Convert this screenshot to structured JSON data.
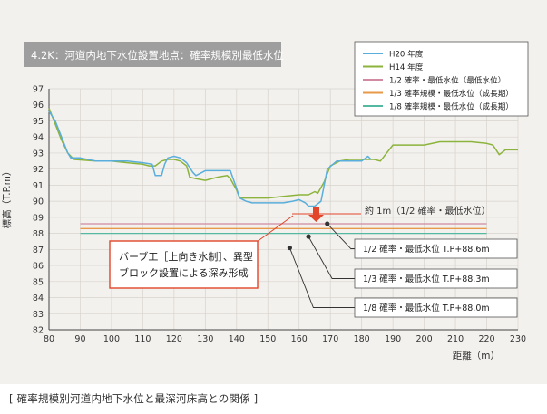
{
  "caption": "[ 確率規模別河道内地下水位と最深河床高との関係 ]",
  "colors": {
    "background": "#f3f1ee",
    "title_bg": "#9e9e9e",
    "h20": "#5aaedc",
    "h14": "#8cb43c",
    "half": "#d08aa2",
    "third": "#e89a4a",
    "eighth": "#55b8a0",
    "arrow": "#e2452a",
    "note_border": "#e2452a"
  },
  "chart_data": {
    "type": "line",
    "title": "4.2K：河道内地下水位設置地点：確率規模別最低水位",
    "xlabel": "距離（m）",
    "ylabel": "標高（T.P.m）",
    "xlim": [
      80,
      230
    ],
    "ylim": [
      82,
      97
    ],
    "xticks": [
      80,
      90,
      100,
      110,
      120,
      130,
      140,
      150,
      160,
      170,
      180,
      190,
      200,
      210,
      220,
      230
    ],
    "yticks": [
      82,
      83,
      84,
      85,
      86,
      87,
      88,
      89,
      90,
      91,
      92,
      93,
      94,
      95,
      96,
      97
    ],
    "legend_position": "top-right",
    "series": [
      {
        "name": "H20 年度",
        "color": "#5aaedc",
        "x": [
          80,
          82,
          84,
          86,
          87,
          90,
          95,
          100,
          105,
          110,
          113,
          114,
          116,
          117,
          118,
          120,
          122,
          124,
          126,
          127,
          129,
          130,
          132,
          135,
          138,
          140,
          141,
          143,
          145,
          150,
          155,
          158,
          160,
          162,
          163,
          165,
          167,
          169,
          172,
          175,
          180,
          182,
          183
        ],
        "y": [
          95.6,
          95.0,
          94.0,
          93.0,
          92.7,
          92.7,
          92.5,
          92.5,
          92.5,
          92.4,
          92.3,
          91.6,
          91.6,
          92.3,
          92.7,
          92.8,
          92.7,
          92.4,
          91.8,
          91.6,
          91.8,
          91.9,
          91.9,
          91.9,
          91.9,
          90.8,
          90.2,
          90.0,
          89.9,
          89.9,
          89.9,
          90.0,
          90.1,
          89.9,
          89.7,
          89.7,
          90.0,
          92.0,
          92.5,
          92.5,
          92.5,
          92.8,
          92.6
        ]
      },
      {
        "name": "H14 年度",
        "color": "#8cb43c",
        "x": [
          80,
          82,
          84,
          86,
          88,
          95,
          100,
          105,
          110,
          112,
          114,
          116,
          118,
          120,
          122,
          124,
          125,
          127,
          130,
          134,
          137,
          138,
          140,
          141,
          145,
          150,
          155,
          160,
          163,
          165,
          166,
          168,
          170,
          173,
          176,
          180,
          182,
          184,
          186,
          188,
          190,
          195,
          200,
          205,
          210,
          215,
          220,
          222,
          224,
          226,
          230
        ],
        "y": [
          95.8,
          94.8,
          93.8,
          93.0,
          92.6,
          92.5,
          92.5,
          92.4,
          92.3,
          92.2,
          92.2,
          92.5,
          92.6,
          92.6,
          92.5,
          92.2,
          91.5,
          91.4,
          91.3,
          91.5,
          91.6,
          91.4,
          90.7,
          90.2,
          90.2,
          90.2,
          90.3,
          90.4,
          90.4,
          90.6,
          90.5,
          91.2,
          92.2,
          92.5,
          92.6,
          92.6,
          92.6,
          92.6,
          92.5,
          93.0,
          93.5,
          93.5,
          93.5,
          93.7,
          93.7,
          93.7,
          93.6,
          93.5,
          92.9,
          93.2,
          93.2
        ]
      },
      {
        "name": "1/2 確率・最低水位（最低水位）",
        "color": "#d08aa2",
        "x": [
          90,
          220
        ],
        "y": [
          88.6,
          88.6
        ]
      },
      {
        "name": "1/3 確率規模・最低水位（成長期）",
        "color": "#e89a4a",
        "x": [
          90,
          220
        ],
        "y": [
          88.3,
          88.3
        ]
      },
      {
        "name": "1/8 確率規模・最低水位（成長期）",
        "color": "#55b8a0",
        "x": [
          90,
          220
        ],
        "y": [
          88.0,
          88.0
        ]
      }
    ],
    "annotations": {
      "range_label": "約 1m（1/2 確率・最低水位）",
      "note_line1": "バーブ工［上向き水制］、異型",
      "note_line2": "ブロック設置による深み形成",
      "callouts": [
        {
          "text": "1/2 確率・最低水位 T.P+88.6m",
          "at_x": 169,
          "at_y": 88.6
        },
        {
          "text": "1/3 確率・最低水位 T.P+88.3m",
          "at_x": 163,
          "at_y": 87.8
        },
        {
          "text": "1/8 確率・最低水位 T.P+88.0m",
          "at_x": 157,
          "at_y": 87.1
        }
      ]
    }
  }
}
